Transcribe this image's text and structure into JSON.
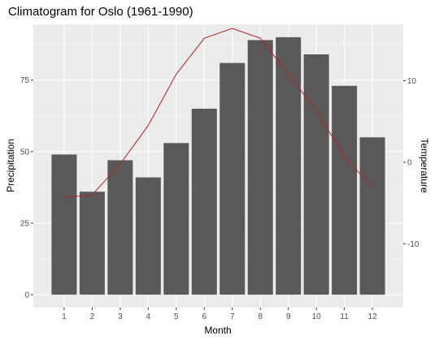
{
  "chart_data": {
    "type": "bar",
    "title": "Climatogram for Oslo (1961-1990)",
    "xlabel": "Month",
    "ylabel": "Precipitation",
    "y2label": "Temperature",
    "categories": [
      "1",
      "2",
      "3",
      "4",
      "5",
      "6",
      "7",
      "8",
      "9",
      "10",
      "11",
      "12"
    ],
    "series": [
      {
        "type": "bar",
        "axis": "left",
        "color": "#595959",
        "values": [
          49,
          36,
          47,
          41,
          53,
          65,
          81,
          89,
          90,
          84,
          73,
          55
        ]
      },
      {
        "type": "line",
        "axis": "right",
        "color": "#b22222",
        "values": [
          -4.3,
          -4.0,
          -0.2,
          4.5,
          10.8,
          15.2,
          16.4,
          15.2,
          10.8,
          6.3,
          0.7,
          -3.1
        ]
      }
    ],
    "ylim": [
      -4.5,
      94.5
    ],
    "y2lim": [
      -17.8,
      16.9
    ],
    "yticks": [
      0,
      25,
      50,
      75
    ],
    "y2ticks": [
      -10,
      0,
      10
    ],
    "grid": true,
    "panel_color": "#ebebeb"
  }
}
